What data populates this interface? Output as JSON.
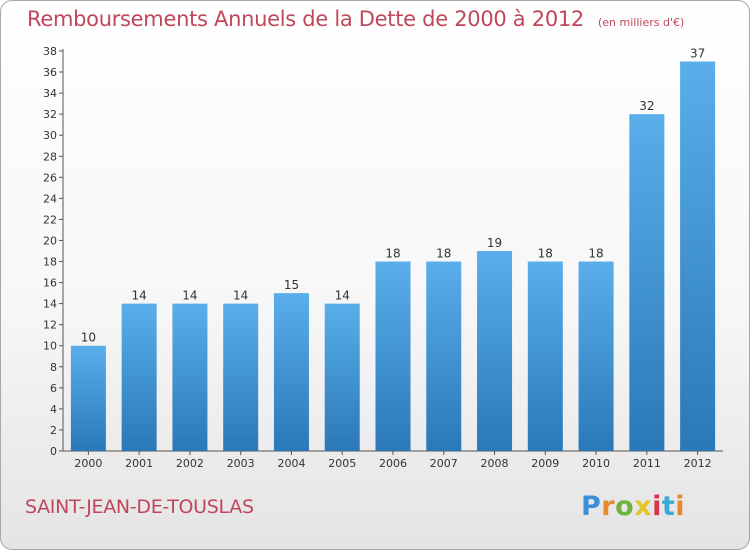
{
  "title": "Remboursements Annuels de la Dette de 2000 à 2012",
  "unit": "(en milliers d'€)",
  "commune": "SAINT-JEAN-DE-TOUSLAS",
  "logo": {
    "text": "Proxiti",
    "letter_colors": [
      "#3a8fd6",
      "#e8892f",
      "#6fb33d",
      "#e5c52a",
      "#d9344d",
      "#3aaad6",
      "#e8892f"
    ]
  },
  "colors": {
    "bar_top": "#5aaeea",
    "bar_bottom": "#2a78b8",
    "title": "#c0475b"
  },
  "chart_data": {
    "type": "bar",
    "categories": [
      "2000",
      "2001",
      "2002",
      "2003",
      "2004",
      "2005",
      "2006",
      "2007",
      "2008",
      "2009",
      "2010",
      "2011",
      "2012"
    ],
    "values": [
      10,
      14,
      14,
      14,
      15,
      14,
      18,
      18,
      19,
      18,
      18,
      32,
      37
    ],
    "ylim": [
      0,
      38
    ],
    "yticks": [
      0,
      2,
      4,
      6,
      8,
      10,
      12,
      14,
      16,
      18,
      20,
      22,
      24,
      26,
      28,
      30,
      32,
      34,
      36,
      38
    ],
    "grid": false,
    "data_labels": true
  }
}
